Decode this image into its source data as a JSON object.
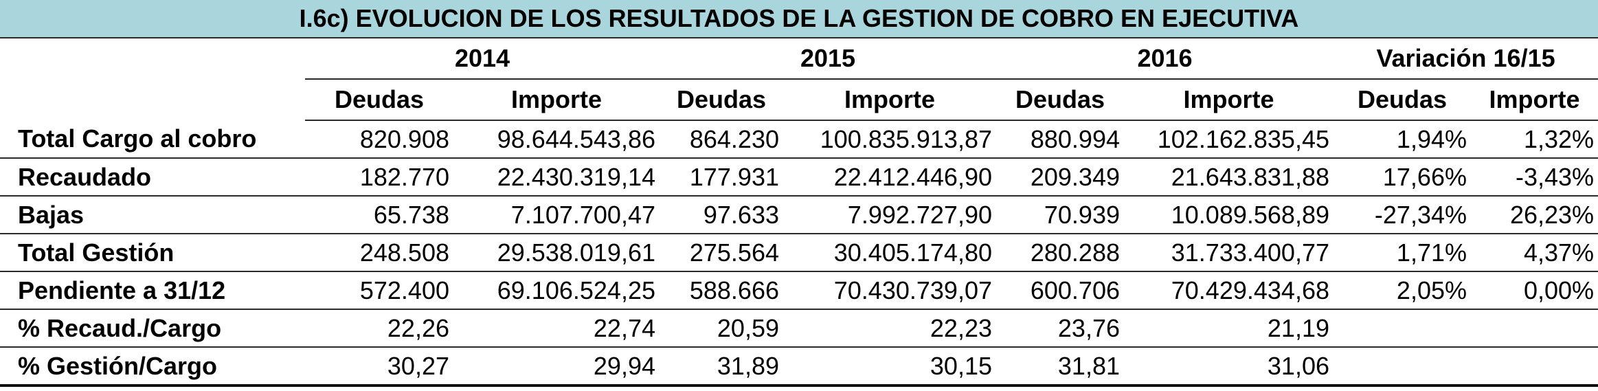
{
  "title": "I.6c) EVOLUCION DE LOS RESULTADOS DE LA GESTION DE COBRO EN EJECUTIVA",
  "years": [
    "2014",
    "2015",
    "2016",
    "Variación 16/15"
  ],
  "subheaders": [
    "Deudas",
    "Importe",
    "Deudas",
    "Importe",
    "Deudas",
    "Importe",
    "Deudas",
    "Importe"
  ],
  "rows": [
    {
      "label": "Total Cargo al cobro",
      "values": [
        "820.908",
        "98.644.543,86",
        "864.230",
        "100.835.913,87",
        "880.994",
        "102.162.835,45",
        "1,94%",
        "1,32%"
      ]
    },
    {
      "label": "Recaudado",
      "values": [
        "182.770",
        "22.430.319,14",
        "177.931",
        "22.412.446,90",
        "209.349",
        "21.643.831,88",
        "17,66%",
        "-3,43%"
      ]
    },
    {
      "label": "Bajas",
      "values": [
        "65.738",
        "7.107.700,47",
        "97.633",
        "7.992.727,90",
        "70.939",
        "10.089.568,89",
        "-27,34%",
        "26,23%"
      ]
    },
    {
      "label": "Total Gestión",
      "values": [
        "248.508",
        "29.538.019,61",
        "275.564",
        "30.405.174,80",
        "280.288",
        "31.733.400,77",
        "1,71%",
        "4,37%"
      ]
    },
    {
      "label": "Pendiente a 31/12",
      "values": [
        "572.400",
        "69.106.524,25",
        "588.666",
        "70.430.739,07",
        "600.706",
        "70.429.434,68",
        "2,05%",
        "0,00%"
      ]
    },
    {
      "label": "% Recaud./Cargo",
      "values": [
        "22,26",
        "22,74",
        "20,59",
        "22,23",
        "23,76",
        "21,19",
        "",
        ""
      ]
    },
    {
      "label": "% Gestión/Cargo",
      "values": [
        "30,27",
        "29,94",
        "31,89",
        "30,15",
        "31,81",
        "31,06",
        "",
        ""
      ]
    }
  ]
}
